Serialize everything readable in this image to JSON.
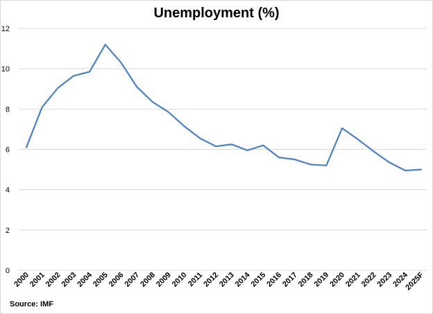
{
  "chart_data": {
    "type": "line",
    "title": "Unemployment (%)",
    "xlabel": "",
    "ylabel": "",
    "source": "Source: IMF",
    "categories": [
      "2000",
      "2001",
      "2002",
      "2003",
      "2004",
      "2005",
      "2006",
      "2007",
      "2008",
      "2009",
      "2010",
      "2011",
      "2012",
      "2013",
      "2014",
      "2015",
      "2016",
      "2017",
      "2018",
      "2019",
      "2020",
      "2021",
      "2022",
      "2023",
      "2024",
      "2025F"
    ],
    "series": [
      {
        "values": [
          6.1,
          8.1,
          9.05,
          9.65,
          9.85,
          11.2,
          10.3,
          9.1,
          8.35,
          7.85,
          7.15,
          6.55,
          6.15,
          6.25,
          5.95,
          6.2,
          5.6,
          5.5,
          5.25,
          5.2,
          7.05,
          6.5,
          5.9,
          5.35,
          4.95,
          5.0
        ]
      }
    ],
    "yticks": [
      0,
      2,
      4,
      6,
      8,
      10,
      12
    ],
    "ylim": [
      0,
      12
    ],
    "grid": true,
    "legend": "none",
    "line_color": "#4f81bd",
    "grid_color": "#d9d9d9"
  }
}
